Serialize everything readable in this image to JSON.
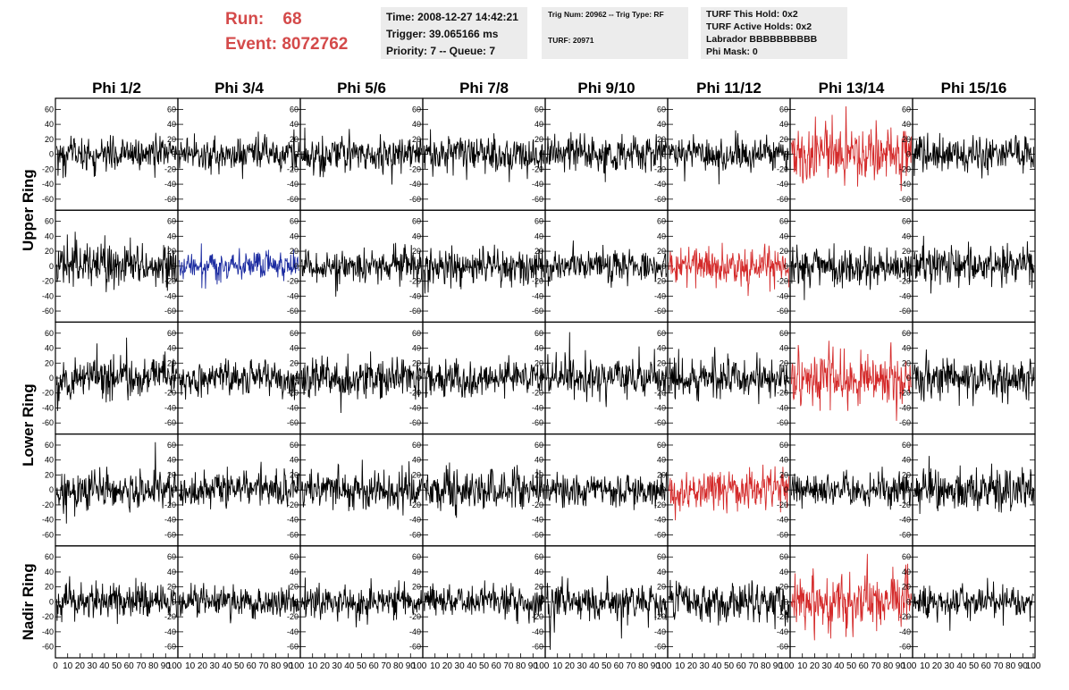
{
  "header": {
    "run_label": "Run:",
    "run_value": "68",
    "event_label": "Event:",
    "event_value": "8072762",
    "time_text": "Time: 2008-12-27 14:42:21",
    "trigger_text": "Trigger: 39.065166 ms",
    "priority_text": "Priority: 7 -- Queue: 7",
    "trig_num_text": "Trig Num: 20962 -- Trig Type: RF",
    "turf_text": "TURF: 20971",
    "turf_this_hold_text": "TURF This Hold: 0x2",
    "turf_active_holds_text": "TURF Active Holds: 0x2",
    "labrador_text": "Labrador BBBBBBBBBB",
    "phi_mask_text": "Phi Mask: 0"
  },
  "colors": {
    "header_red": "#d44a4a",
    "trace_default": "#000000",
    "trace_red": "#d42a2a",
    "trace_blue": "#1a2aa0",
    "info_box_bg": "#ececec"
  },
  "chart_data": {
    "type": "line",
    "columns": [
      "Phi 1/2",
      "Phi 3/4",
      "Phi 5/6",
      "Phi 7/8",
      "Phi 9/10",
      "Phi 11/12",
      "Phi 13/14",
      "Phi 15/16"
    ],
    "ring_labels": [
      {
        "text": "Upper Ring"
      },
      {
        "text": "Lower Ring"
      },
      {
        "text": "Nadir Ring"
      }
    ],
    "rows": 5,
    "ylim": [
      -70,
      70
    ],
    "yticks": [
      -60,
      -40,
      -20,
      0,
      20,
      40,
      60
    ],
    "xlim": [
      0,
      100
    ],
    "xtick_labels_first": [
      "0",
      "10",
      "20",
      "30",
      "40",
      "50",
      "60",
      "70",
      "80",
      "90",
      "100"
    ],
    "xtick_labels": [
      "10",
      "20",
      "30",
      "40",
      "50",
      "60",
      "70",
      "80",
      "90",
      "100"
    ],
    "samples_per_trace": 260,
    "panels": [
      [
        {
          "amp": 15,
          "color": "black"
        },
        {
          "amp": 14,
          "color": "black"
        },
        {
          "amp": 16,
          "color": "black"
        },
        {
          "amp": 16,
          "color": "black"
        },
        {
          "amp": 16,
          "color": "black"
        },
        {
          "amp": 14,
          "color": "black"
        },
        {
          "amp": 24,
          "color": "red"
        },
        {
          "amp": 16,
          "color": "black"
        }
      ],
      [
        {
          "amp": 18,
          "color": "black"
        },
        {
          "amp": 12,
          "color": "blue"
        },
        {
          "amp": 14,
          "color": "black"
        },
        {
          "amp": 17,
          "color": "black"
        },
        {
          "amp": 14,
          "color": "black"
        },
        {
          "amp": 17,
          "color": "red"
        },
        {
          "amp": 17,
          "color": "black"
        },
        {
          "amp": 18,
          "color": "black"
        }
      ],
      [
        {
          "amp": 17,
          "color": "black"
        },
        {
          "amp": 15,
          "color": "black"
        },
        {
          "amp": 18,
          "color": "black"
        },
        {
          "amp": 16,
          "color": "black"
        },
        {
          "amp": 16,
          "color": "black"
        },
        {
          "amp": 16,
          "color": "black"
        },
        {
          "amp": 24,
          "color": "red"
        },
        {
          "amp": 17,
          "color": "black"
        }
      ],
      [
        {
          "amp": 17,
          "color": "black"
        },
        {
          "amp": 16,
          "color": "black"
        },
        {
          "amp": 16,
          "color": "black"
        },
        {
          "amp": 18,
          "color": "black"
        },
        {
          "amp": 13,
          "color": "black"
        },
        {
          "amp": 17,
          "color": "red"
        },
        {
          "amp": 14,
          "color": "black"
        },
        {
          "amp": 19,
          "color": "black"
        }
      ],
      [
        {
          "amp": 15,
          "color": "black"
        },
        {
          "amp": 12,
          "color": "black"
        },
        {
          "amp": 14,
          "color": "black"
        },
        {
          "amp": 15,
          "color": "black"
        },
        {
          "amp": 16,
          "color": "black"
        },
        {
          "amp": 17,
          "color": "black"
        },
        {
          "amp": 24,
          "color": "red"
        },
        {
          "amp": 14,
          "color": "black"
        }
      ]
    ]
  }
}
